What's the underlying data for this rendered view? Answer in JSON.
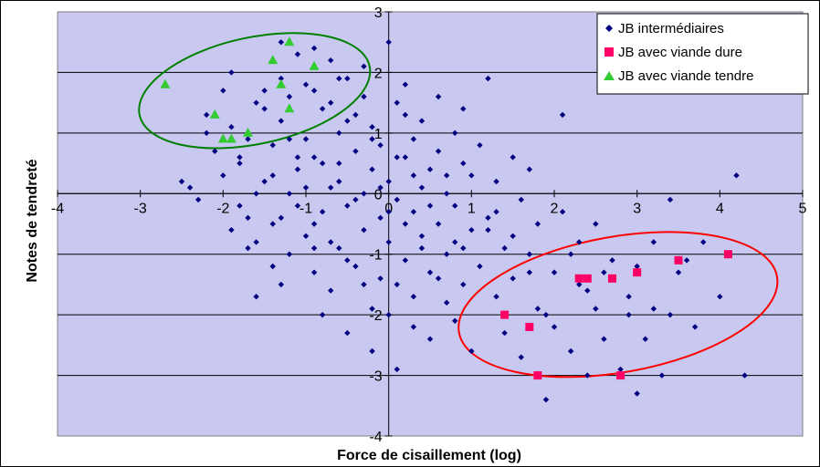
{
  "chart_data": {
    "type": "scatter",
    "title": "",
    "xlabel": "Force de cisaillement (log)",
    "ylabel": "Notes de tendreté",
    "xlim": [
      -4,
      5
    ],
    "ylim": [
      -4,
      3
    ],
    "x_ticks": [
      "-4",
      "-3",
      "-2",
      "-1",
      "0",
      "1",
      "2",
      "3",
      "4",
      "5"
    ],
    "y_ticks": [
      "3",
      "2",
      "1",
      "0",
      "-1",
      "-2",
      "-3",
      "-4"
    ],
    "grid": "horizontal",
    "legend_position": "top-right",
    "colors": {
      "plot_background": "#C8C8F0",
      "intermediaires": "#000080",
      "viande_dure": "#FF0066",
      "viande_tendre": "#33CC33",
      "ellipse_green": "#008000",
      "ellipse_red": "#FF0000"
    },
    "series": [
      {
        "name": "JB intermédiaires",
        "marker": "diamond",
        "points": [
          [
            -2.5,
            0.2
          ],
          [
            -2.4,
            0.1
          ],
          [
            -2.3,
            -0.1
          ],
          [
            -2.2,
            1.3
          ],
          [
            -2.1,
            0.7
          ],
          [
            -2.0,
            0.3
          ],
          [
            -1.9,
            2.0
          ],
          [
            -1.9,
            1.1
          ],
          [
            -1.8,
            -0.2
          ],
          [
            -1.8,
            0.5
          ],
          [
            -1.7,
            -0.4
          ],
          [
            -1.7,
            0.9
          ],
          [
            -1.6,
            1.5
          ],
          [
            -1.6,
            -0.8
          ],
          [
            -1.5,
            0.2
          ],
          [
            -1.5,
            1.7
          ],
          [
            -1.4,
            -0.5
          ],
          [
            -1.4,
            0.8
          ],
          [
            -1.3,
            2.5
          ],
          [
            -1.3,
            1.2
          ],
          [
            -1.3,
            -1.5
          ],
          [
            -1.2,
            0.0
          ],
          [
            -1.2,
            -1.0
          ],
          [
            -1.1,
            2.3
          ],
          [
            -1.1,
            0.4
          ],
          [
            -1.0,
            1.8
          ],
          [
            -1.0,
            -0.7
          ],
          [
            -1.0,
            0.9
          ],
          [
            -0.9,
            -1.3
          ],
          [
            -0.9,
            2.4
          ],
          [
            -0.9,
            0.6
          ],
          [
            -0.8,
            -0.3
          ],
          [
            -0.8,
            1.4
          ],
          [
            -0.8,
            -2.0
          ],
          [
            -0.7,
            0.1
          ],
          [
            -0.7,
            2.2
          ],
          [
            -0.7,
            -1.6
          ],
          [
            -0.6,
            1.0
          ],
          [
            -0.6,
            -0.9
          ],
          [
            -0.6,
            0.5
          ],
          [
            -0.5,
            1.9
          ],
          [
            -0.5,
            -0.2
          ],
          [
            -0.5,
            -2.3
          ],
          [
            -0.4,
            0.7
          ],
          [
            -0.4,
            -1.2
          ],
          [
            -0.4,
            1.3
          ],
          [
            -0.3,
            0.0
          ],
          [
            -0.3,
            -0.6
          ],
          [
            -0.3,
            2.1
          ],
          [
            -0.2,
            0.4
          ],
          [
            -0.2,
            -1.9
          ],
          [
            -0.2,
            1.1
          ],
          [
            -0.1,
            -0.4
          ],
          [
            -0.1,
            0.8
          ],
          [
            -0.1,
            -1.4
          ],
          [
            0.0,
            2.5
          ],
          [
            0.0,
            0.2
          ],
          [
            0.0,
            -0.8
          ],
          [
            0.1,
            1.5
          ],
          [
            0.1,
            -0.1
          ],
          [
            0.1,
            -2.9
          ],
          [
            0.2,
            0.6
          ],
          [
            0.2,
            -1.1
          ],
          [
            0.2,
            1.8
          ],
          [
            0.3,
            -0.3
          ],
          [
            0.3,
            0.9
          ],
          [
            0.3,
            -1.7
          ],
          [
            0.4,
            0.1
          ],
          [
            0.4,
            -0.7
          ],
          [
            0.4,
            1.2
          ],
          [
            0.5,
            -1.3
          ],
          [
            0.5,
            0.4
          ],
          [
            0.5,
            -2.4
          ],
          [
            0.6,
            0.7
          ],
          [
            0.6,
            -0.5
          ],
          [
            0.6,
            1.6
          ],
          [
            0.7,
            -1.0
          ],
          [
            0.7,
            0.0
          ],
          [
            0.7,
            -1.8
          ],
          [
            0.8,
            1.0
          ],
          [
            0.8,
            -0.2
          ],
          [
            0.8,
            -2.1
          ],
          [
            0.9,
            0.5
          ],
          [
            0.9,
            -1.5
          ],
          [
            0.9,
            1.4
          ],
          [
            1.0,
            -0.6
          ],
          [
            1.0,
            0.3
          ],
          [
            1.0,
            -2.6
          ],
          [
            1.1,
            -1.2
          ],
          [
            1.1,
            0.8
          ],
          [
            1.2,
            -0.4
          ],
          [
            1.2,
            1.9
          ],
          [
            1.3,
            -1.7
          ],
          [
            1.3,
            0.2
          ],
          [
            1.4,
            -0.9
          ],
          [
            1.4,
            -2.3
          ],
          [
            1.5,
            0.6
          ],
          [
            1.5,
            -1.4
          ],
          [
            1.6,
            -0.1
          ],
          [
            1.6,
            -2.7
          ],
          [
            1.7,
            -1.0
          ],
          [
            1.7,
            0.4
          ],
          [
            1.8,
            -1.9
          ],
          [
            1.8,
            -0.5
          ],
          [
            1.9,
            -3.4
          ],
          [
            2.0,
            -1.3
          ],
          [
            2.0,
            -2.2
          ],
          [
            2.1,
            1.3
          ],
          [
            2.1,
            -0.3
          ],
          [
            2.2,
            -2.6
          ],
          [
            2.3,
            -1.5
          ],
          [
            2.3,
            -0.8
          ],
          [
            2.4,
            -3.0
          ],
          [
            2.5,
            -1.9
          ],
          [
            2.5,
            -0.5
          ],
          [
            2.6,
            -2.4
          ],
          [
            2.7,
            -1.1
          ],
          [
            2.8,
            -2.9
          ],
          [
            2.9,
            -1.7
          ],
          [
            3.0,
            -3.3
          ],
          [
            3.0,
            -1.2
          ],
          [
            3.1,
            -2.4
          ],
          [
            3.2,
            -0.8
          ],
          [
            3.3,
            -3.0
          ],
          [
            3.4,
            -2.0
          ],
          [
            3.4,
            -0.1
          ],
          [
            3.6,
            -1.1
          ],
          [
            3.7,
            -2.2
          ],
          [
            4.0,
            -1.7
          ],
          [
            4.2,
            0.3
          ],
          [
            4.3,
            -3.0
          ],
          [
            -2.0,
            1.7
          ],
          [
            -1.5,
            1.4
          ],
          [
            -1.2,
            1.6
          ],
          [
            -0.9,
            1.7
          ],
          [
            -0.6,
            1.9
          ],
          [
            -0.3,
            1.6
          ],
          [
            0.2,
            1.3
          ],
          [
            -1.8,
            0.6
          ],
          [
            -1.4,
            0.3
          ],
          [
            -1.1,
            -0.2
          ],
          [
            -0.9,
            -0.5
          ],
          [
            -0.7,
            -0.8
          ],
          [
            -0.5,
            -1.1
          ],
          [
            -0.3,
            -1.5
          ],
          [
            0.0,
            -2.0
          ],
          [
            0.3,
            -2.2
          ],
          [
            0.6,
            -1.4
          ],
          [
            0.9,
            -0.9
          ],
          [
            1.2,
            -0.6
          ],
          [
            -0.2,
            0.9
          ],
          [
            -0.1,
            0.1
          ],
          [
            0.0,
            -0.3
          ],
          [
            0.1,
            0.6
          ],
          [
            0.2,
            -0.5
          ],
          [
            0.3,
            0.3
          ],
          [
            -0.4,
            -0.1
          ],
          [
            -0.6,
            0.2
          ],
          [
            -0.8,
            0.5
          ],
          [
            0.4,
            -0.9
          ],
          [
            0.5,
            -0.2
          ],
          [
            0.7,
            0.3
          ],
          [
            0.8,
            -0.8
          ],
          [
            -1.0,
            0.1
          ],
          [
            -1.2,
            0.9
          ],
          [
            -1.4,
            -1.2
          ],
          [
            -1.6,
            -1.7
          ],
          [
            -1.7,
            -0.9
          ],
          [
            1.3,
            -0.3
          ],
          [
            1.5,
            -0.7
          ],
          [
            1.7,
            -1.3
          ],
          [
            1.9,
            -2.0
          ],
          [
            2.2,
            -1.0
          ],
          [
            2.4,
            -1.6
          ],
          [
            2.6,
            -1.3
          ],
          [
            2.9,
            -2.0
          ],
          [
            3.2,
            -1.9
          ],
          [
            3.5,
            -1.3
          ],
          [
            3.8,
            -0.8
          ],
          [
            -0.2,
            -2.6
          ],
          [
            0.1,
            -1.5
          ],
          [
            -0.5,
            1.2
          ],
          [
            -0.7,
            1.5
          ],
          [
            -1.3,
            1.9
          ],
          [
            -2.2,
            1.0
          ],
          [
            -1.9,
            -0.6
          ],
          [
            -1.6,
            0.0
          ],
          [
            -1.3,
            -0.4
          ],
          [
            -1.1,
            0.6
          ],
          [
            -0.9,
            -0.9
          ]
        ]
      },
      {
        "name": "JB avec viande dure",
        "marker": "square",
        "points": [
          [
            1.4,
            -2.0
          ],
          [
            1.7,
            -2.2
          ],
          [
            1.8,
            -3.0
          ],
          [
            2.3,
            -1.4
          ],
          [
            2.4,
            -1.4
          ],
          [
            2.7,
            -1.4
          ],
          [
            2.8,
            -3.0
          ],
          [
            3.0,
            -1.3
          ],
          [
            3.5,
            -1.1
          ],
          [
            4.1,
            -1.0
          ]
        ]
      },
      {
        "name": "JB avec viande tendre",
        "marker": "triangle",
        "points": [
          [
            -2.7,
            1.8
          ],
          [
            -2.1,
            1.3
          ],
          [
            -2.0,
            0.9
          ],
          [
            -1.9,
            0.9
          ],
          [
            -1.7,
            1.0
          ],
          [
            -1.4,
            2.2
          ],
          [
            -1.3,
            1.8
          ],
          [
            -1.2,
            1.4
          ],
          [
            -1.2,
            2.5
          ],
          [
            -0.9,
            2.1
          ]
        ]
      }
    ],
    "ellipses": [
      {
        "series": "JB avec viande tendre",
        "cx": -1.62,
        "cy": 1.7,
        "rx": 1.42,
        "ry": 0.88,
        "angle_deg": -12
      },
      {
        "series": "JB avec viande dure",
        "cx": 2.77,
        "cy": -1.83,
        "rx": 1.95,
        "ry": 1.12,
        "angle_deg": -10
      }
    ]
  }
}
